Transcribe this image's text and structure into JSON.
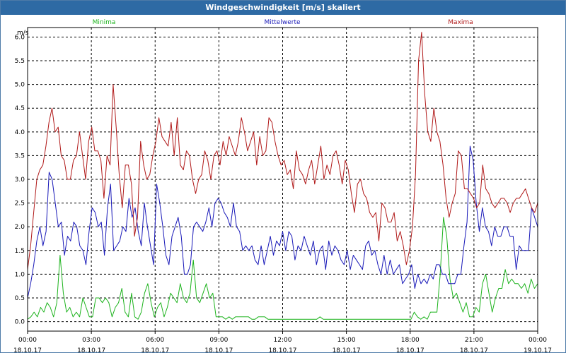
{
  "window": {
    "title": "Windgeschwindigkeit [m/s] skaliert"
  },
  "colors": {
    "titlebar": "#2e6aa4",
    "minima": "#1db31d",
    "mittel": "#1818b8",
    "maxima": "#b01818",
    "grid": "#000000"
  },
  "chart_data": {
    "type": "line",
    "title": "Windgeschwindigkeit [m/s] skaliert",
    "ylabel": "m/s",
    "xlabel": "",
    "ylim": [
      -0.2,
      6.2
    ],
    "xlim": [
      0,
      24
    ],
    "grid": true,
    "legend": "top",
    "y_ticks": [
      "0.0",
      "0.5",
      "1.0",
      "1.5",
      "2.0",
      "2.5",
      "3.0",
      "3.5",
      "4.0",
      "4.5",
      "5.0",
      "5.5",
      "6.0"
    ],
    "x_ticks": [
      {
        "time": "00:00",
        "date": "18.10.17"
      },
      {
        "time": "03:00",
        "date": "18.10.17"
      },
      {
        "time": "06:00",
        "date": "18.10.17"
      },
      {
        "time": "09:00",
        "date": "18.10.17"
      },
      {
        "time": "12:00",
        "date": "18.10.17"
      },
      {
        "time": "15:00",
        "date": "18.10.17"
      },
      {
        "time": "18:00",
        "date": "18.10.17"
      },
      {
        "time": "21:00",
        "date": "18.10.17"
      },
      {
        "time": "00:00",
        "date": "19.10.17"
      }
    ],
    "x_step_hours": 0.16666667,
    "series": [
      {
        "name": "Minima",
        "color": "#1db31d",
        "values": [
          0.05,
          0.1,
          0.2,
          0.1,
          0.3,
          0.2,
          0.4,
          0.3,
          0.1,
          0.4,
          1.4,
          0.6,
          0.2,
          0.3,
          0.1,
          0.2,
          0.1,
          0.5,
          0.3,
          0.1,
          0.1,
          0.5,
          0.5,
          0.4,
          0.5,
          0.4,
          0.1,
          0.3,
          0.4,
          0.7,
          0.2,
          0.1,
          0.6,
          0.1,
          0.05,
          0.2,
          0.6,
          0.8,
          0.4,
          0.1,
          0.3,
          0.4,
          0.1,
          0.3,
          0.6,
          0.5,
          0.4,
          0.8,
          0.5,
          0.4,
          0.6,
          1.3,
          0.5,
          0.4,
          0.6,
          0.8,
          0.5,
          0.6,
          0.1,
          0.1,
          0.1,
          0.05,
          0.1,
          0.05,
          0.1,
          0.1,
          0.1,
          0.1,
          0.1,
          0.05,
          0.05,
          0.1,
          0.1,
          0.1,
          0.05,
          0.05,
          0.05,
          0.05,
          0.05,
          0.05,
          0.05,
          0.05,
          0.05,
          0.05,
          0.05,
          0.05,
          0.05,
          0.05,
          0.05,
          0.05,
          0.1,
          0.05,
          0.05,
          0.05,
          0.05,
          0.05,
          0.05,
          0.05,
          0.05,
          0.05,
          0.05,
          0.05,
          0.05,
          0.05,
          0.05,
          0.05,
          0.05,
          0.05,
          0.05,
          0.05,
          0.05,
          0.05,
          0.05,
          0.05,
          0.05,
          0.05,
          0.05,
          0.05,
          0.05,
          0.2,
          0.1,
          0.05,
          0.1,
          0.05,
          0.2,
          0.2,
          0.2,
          1.0,
          2.2,
          1.8,
          0.9,
          0.5,
          0.6,
          0.4,
          0.2,
          0.4,
          0.1,
          0.1,
          0.3,
          0.2,
          0.8,
          1.0,
          0.6,
          0.2,
          0.5,
          0.7,
          0.7,
          1.1,
          0.8,
          0.9,
          0.8,
          0.8,
          0.7,
          0.8,
          0.6,
          0.9,
          0.7,
          0.8
        ]
      },
      {
        "name": "Mittelwerte",
        "color": "#1818b8",
        "values": [
          0.5,
          0.8,
          1.2,
          1.7,
          2.0,
          1.6,
          1.9,
          3.15,
          3.0,
          2.5,
          2.0,
          2.1,
          1.4,
          1.8,
          1.7,
          2.1,
          2.0,
          1.6,
          1.5,
          1.2,
          1.9,
          2.4,
          2.3,
          2.0,
          2.1,
          1.4,
          2.4,
          2.9,
          1.5,
          1.6,
          1.7,
          2.0,
          1.9,
          2.6,
          2.2,
          2.4,
          1.9,
          1.6,
          2.5,
          2.0,
          1.6,
          1.2,
          2.9,
          2.5,
          2.0,
          1.4,
          1.2,
          1.8,
          2.0,
          2.2,
          1.8,
          1.0,
          1.0,
          1.2,
          2.0,
          2.1,
          2.0,
          1.9,
          2.1,
          2.4,
          2.0,
          2.5,
          2.6,
          2.5,
          2.3,
          2.2,
          2.0,
          2.5,
          2.0,
          1.9,
          1.5,
          1.6,
          1.5,
          1.6,
          1.3,
          1.2,
          1.6,
          1.2,
          1.5,
          1.8,
          1.4,
          1.7,
          1.6,
          1.9,
          1.5,
          1.9,
          1.8,
          1.3,
          1.6,
          1.5,
          1.8,
          1.6,
          1.4,
          1.7,
          1.2,
          1.5,
          1.6,
          1.1,
          1.7,
          1.4,
          1.6,
          1.5,
          1.3,
          1.2,
          1.5,
          1.1,
          1.4,
          1.3,
          1.2,
          1.1,
          1.6,
          1.7,
          1.4,
          1.5,
          1.2,
          1.0,
          1.4,
          1.0,
          1.3,
          1.0,
          1.1,
          1.2,
          0.8,
          0.9,
          1.0,
          1.2,
          0.7,
          1.0,
          0.8,
          0.9,
          0.8,
          1.0,
          0.9,
          1.2,
          1.2,
          1.0,
          1.0,
          0.8,
          0.8,
          0.8,
          1.0,
          1.0,
          1.6,
          2.1,
          3.7,
          3.4,
          2.5,
          1.9,
          2.4,
          2.0,
          1.9,
          1.6,
          2.0,
          1.8,
          1.8,
          2.0,
          2.0,
          1.8,
          1.8,
          1.1,
          1.6,
          1.5,
          1.5,
          1.5,
          2.4,
          2.2,
          2.0
        ]
      },
      {
        "name": "Maxima",
        "color": "#b01818",
        "values": [
          1.1,
          1.6,
          2.3,
          3.0,
          3.2,
          3.3,
          3.7,
          4.2,
          4.5,
          4.0,
          4.1,
          3.5,
          3.4,
          3.0,
          3.0,
          3.4,
          3.5,
          4.0,
          3.5,
          3.0,
          3.8,
          4.1,
          3.6,
          3.6,
          3.4,
          2.6,
          3.5,
          3.3,
          5.0,
          4.1,
          3.1,
          2.4,
          3.3,
          3.3,
          2.9,
          1.8,
          2.2,
          3.8,
          3.3,
          3.0,
          3.1,
          3.5,
          3.8,
          4.3,
          3.9,
          3.8,
          3.7,
          4.2,
          3.5,
          4.3,
          3.3,
          3.2,
          3.6,
          3.5,
          3.0,
          2.7,
          3.0,
          3.1,
          3.6,
          3.4,
          3.0,
          3.5,
          3.6,
          3.3,
          3.8,
          3.5,
          3.9,
          3.7,
          3.5,
          3.8,
          4.3,
          4.0,
          3.6,
          3.8,
          4.0,
          3.3,
          3.9,
          3.5,
          3.6,
          4.3,
          4.2,
          3.8,
          3.5,
          3.3,
          3.4,
          3.1,
          3.2,
          2.8,
          3.6,
          3.2,
          3.1,
          2.9,
          3.2,
          3.4,
          2.9,
          3.3,
          3.7,
          3.0,
          3.3,
          3.1,
          3.5,
          3.6,
          3.3,
          2.9,
          3.4,
          3.2,
          2.7,
          2.3,
          2.9,
          3.0,
          2.7,
          2.6,
          2.3,
          2.2,
          2.3,
          1.7,
          2.5,
          2.4,
          2.1,
          2.1,
          2.3,
          1.7,
          1.9,
          1.6,
          1.2,
          1.5,
          2.0,
          3.1,
          5.5,
          6.1,
          4.8,
          4.0,
          3.8,
          4.5,
          4.0,
          3.8,
          3.3,
          2.6,
          2.2,
          2.5,
          2.7,
          3.6,
          3.5,
          2.8,
          2.8,
          2.7,
          2.6,
          2.4,
          2.5,
          3.3,
          2.8,
          2.7,
          2.5,
          2.4,
          2.5,
          2.6,
          2.6,
          2.5,
          2.3,
          2.5,
          2.6,
          2.6,
          2.7,
          2.8,
          2.6,
          2.4,
          2.3,
          2.5
        ]
      }
    ]
  }
}
